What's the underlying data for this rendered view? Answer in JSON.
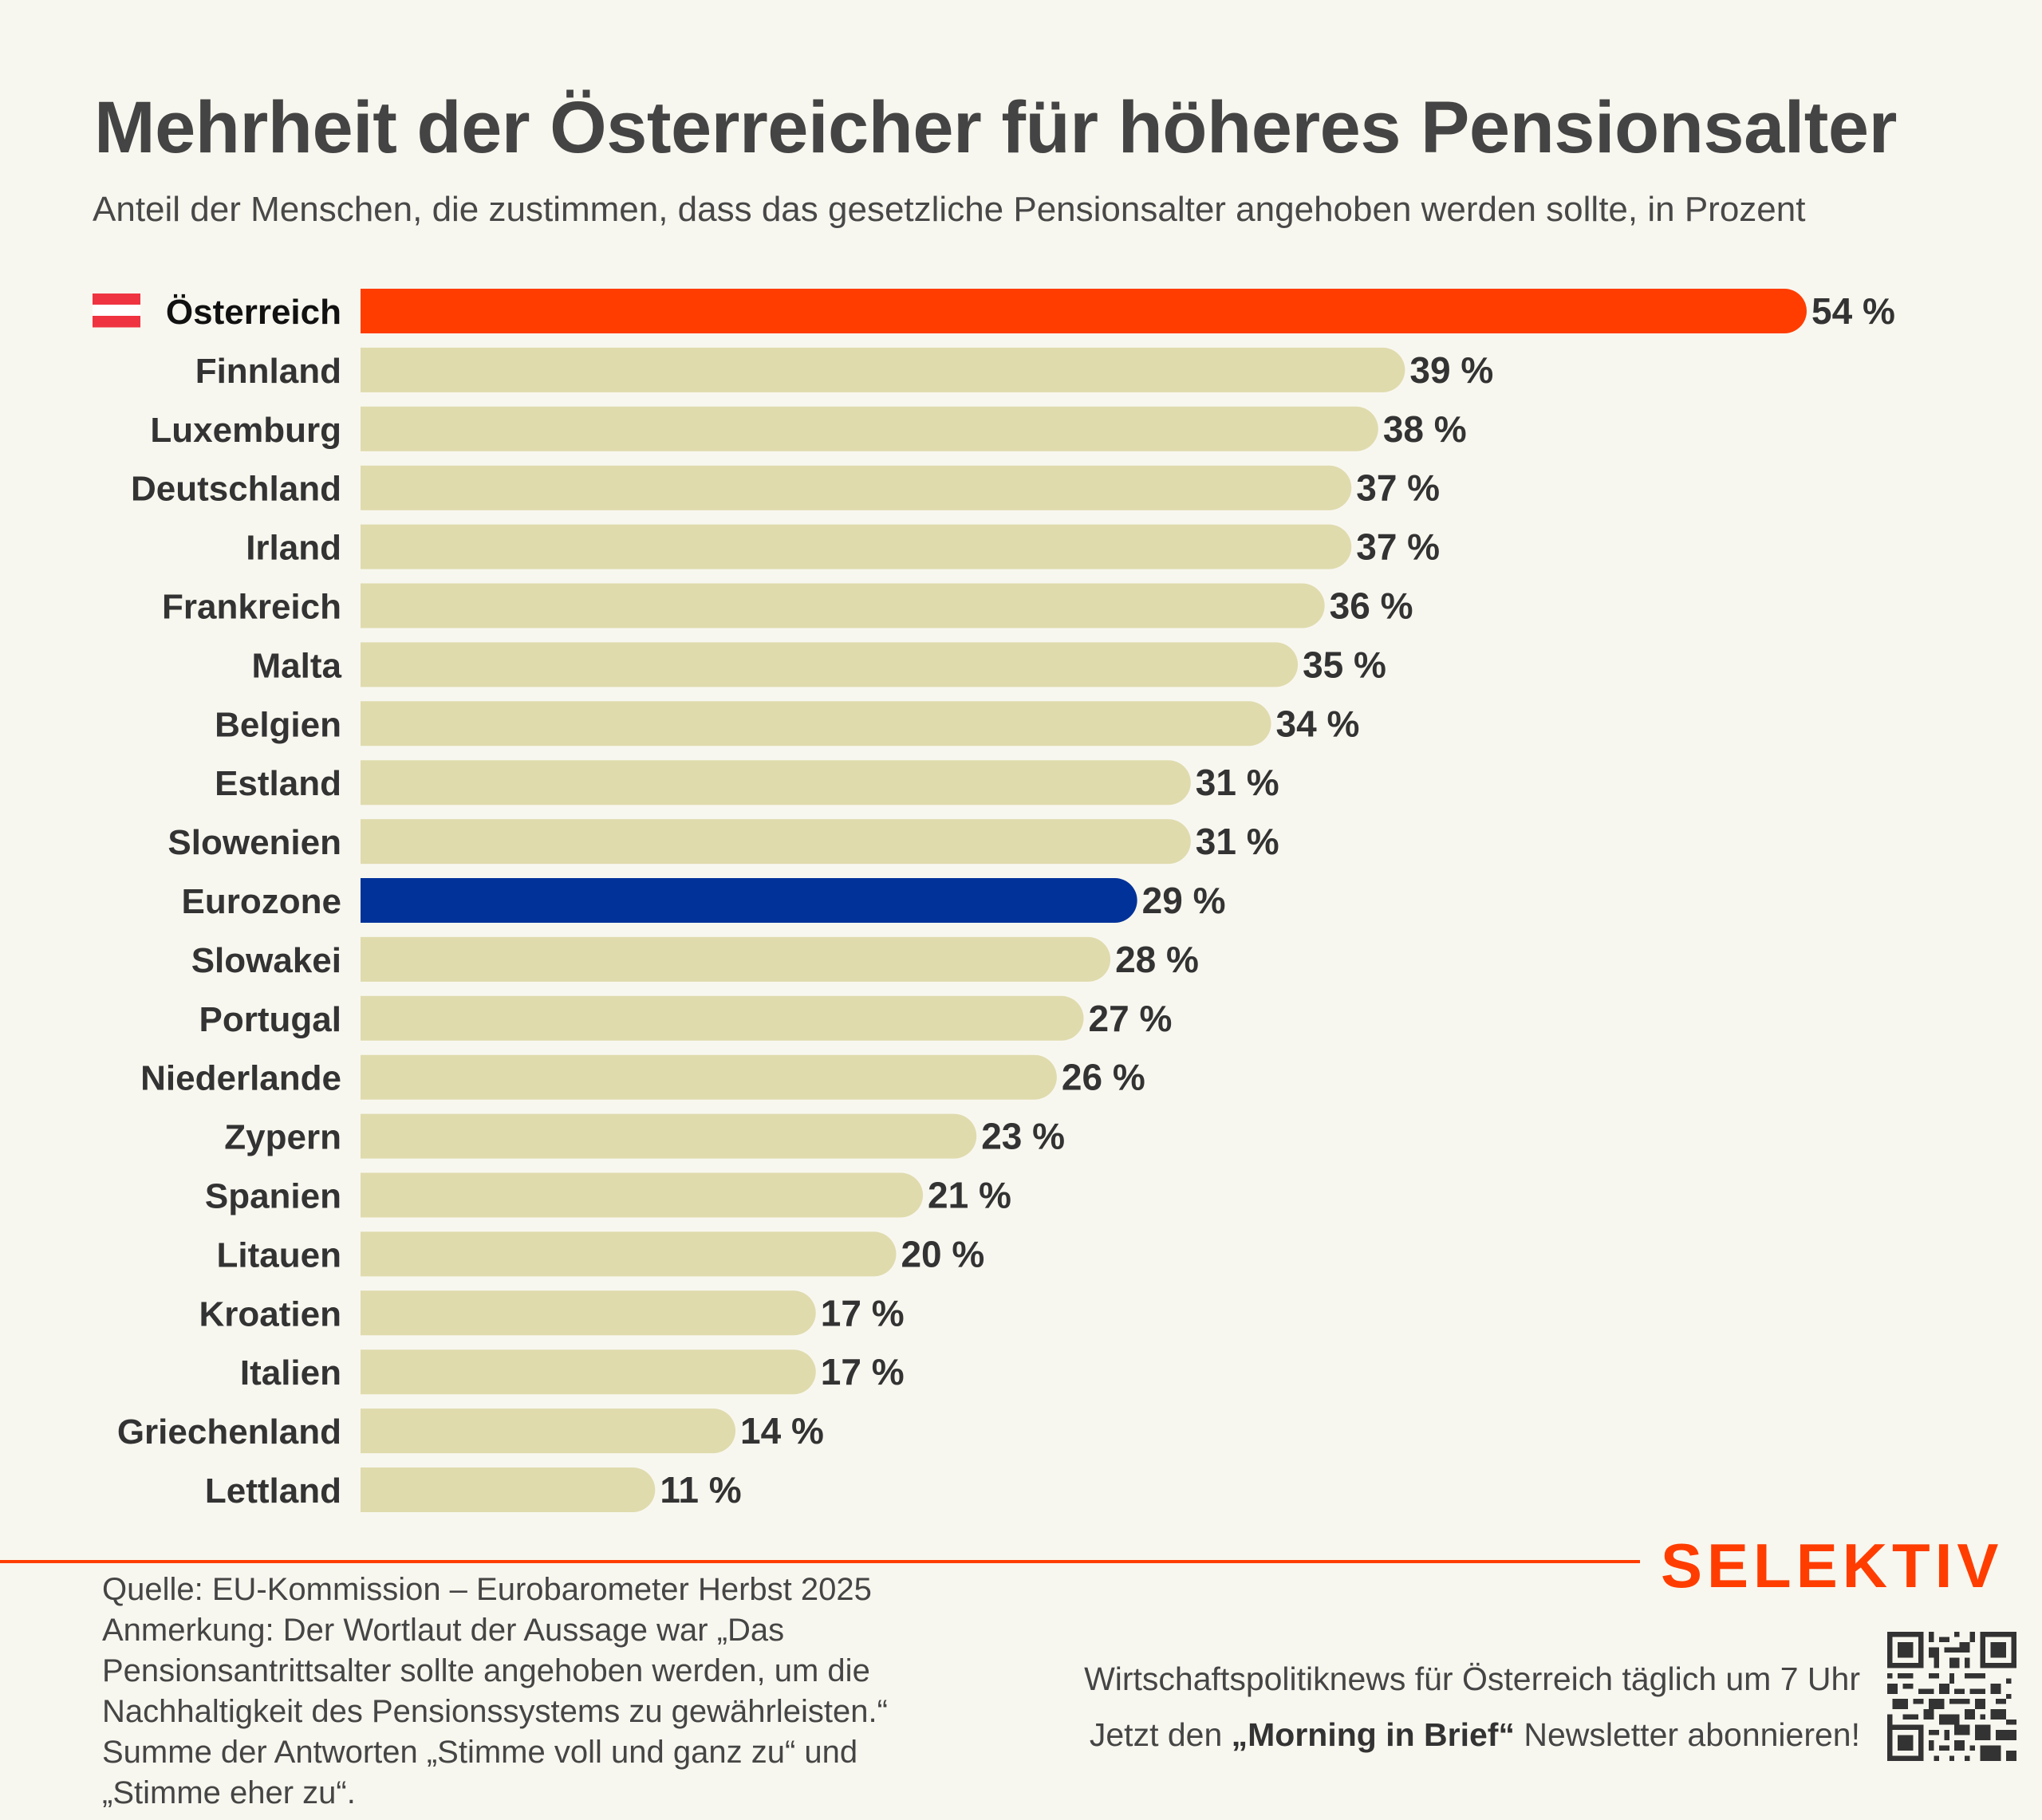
{
  "header": {
    "title": "Mehrheit der Österreicher für höheres Pensionsalter",
    "subtitle": "Anteil der Menschen, die zustimmen, dass das gesetzliche Pensionsalter angehoben werden sollte, in Prozent"
  },
  "colors": {
    "highlight": "#ff3d00",
    "eurozone": "#003299",
    "default_bar": "#dfdbad",
    "background": "#f8f7ef",
    "label": "#333333"
  },
  "chart_data": {
    "type": "bar",
    "orientation": "horizontal",
    "title": "Mehrheit der Österreicher für höheres Pensionsalter",
    "subtitle": "Anteil der Menschen, die zustimmen, dass das gesetzliche Pensionsalter angehoben werden sollte, in Prozent",
    "xlabel": "",
    "ylabel": "",
    "unit": "%",
    "xlim": [
      0,
      54
    ],
    "grid": false,
    "categories": [
      "Österreich",
      "Finnland",
      "Luxemburg",
      "Deutschland",
      "Irland",
      "Frankreich",
      "Malta",
      "Belgien",
      "Estland",
      "Slowenien",
      "Eurozone",
      "Slowakei",
      "Portugal",
      "Niederlande",
      "Zypern",
      "Spanien",
      "Litauen",
      "Kroatien",
      "Italien",
      "Griechenland",
      "Lettland"
    ],
    "values": [
      54,
      39,
      38,
      37,
      37,
      36,
      35,
      34,
      31,
      31,
      29,
      28,
      27,
      26,
      23,
      21,
      20,
      17,
      17,
      14,
      11
    ],
    "value_labels": [
      "54 %",
      "39 %",
      "38 %",
      "37 %",
      "37 %",
      "36 %",
      "35 %",
      "34 %",
      "31 %",
      "31 %",
      "29 %",
      "28 %",
      "27 %",
      "26 %",
      "23 %",
      "21 %",
      "20 %",
      "17 %",
      "17 %",
      "14 %",
      "11 %"
    ],
    "highlight": {
      "Österreich": "highlight",
      "Eurozone": "eurozone"
    },
    "flag_icon": {
      "Österreich": "austria-flag-icon"
    }
  },
  "footer": {
    "logo": "SELEKTIV",
    "notes": [
      "Quelle: EU-Kommission – Eurobarometer Herbst 2025",
      "Anmerkung: Der Wortlaut der Aussage war „Das",
      "Pensionsantrittsalter sollte angehoben werden, um die",
      "Nachhaltigkeit des Pensionssystems zu gewährleisten.“",
      "Summe der Antworten „Stimme voll und ganz zu“ und",
      "„Stimme eher zu“."
    ],
    "promo_line1": "Wirtschaftspolitiknews für Österreich täglich um 7 Uhr",
    "promo_line2_pre": "Jetzt den ",
    "promo_line2_bold": "„Morning in Brief“",
    "promo_line2_post": " Newsletter abonnieren!",
    "qr_icon": "qr-code-icon"
  }
}
